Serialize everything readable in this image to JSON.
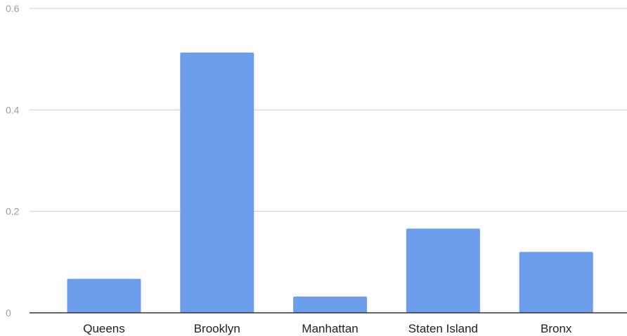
{
  "chart_data": {
    "type": "bar",
    "title": "",
    "xlabel": "",
    "ylabel": "",
    "categories": [
      "Queens",
      "Brooklyn",
      "Manhattan",
      "Staten Island",
      "Bronx"
    ],
    "values": [
      0.067,
      0.513,
      0.032,
      0.166,
      0.12
    ],
    "ylim": [
      0,
      0.6
    ],
    "yticks": [
      0,
      0.2,
      0.4,
      0.6
    ],
    "ytick_labels": [
      "0",
      "0.2",
      "0.4",
      "0.6"
    ],
    "grid": true,
    "legend": "none",
    "colors": {
      "bar": "#6d9eeb",
      "grid": "#cccccc",
      "baseline": "#333333",
      "tick_text": "#9e9e9e",
      "category_text": "#222222"
    }
  }
}
